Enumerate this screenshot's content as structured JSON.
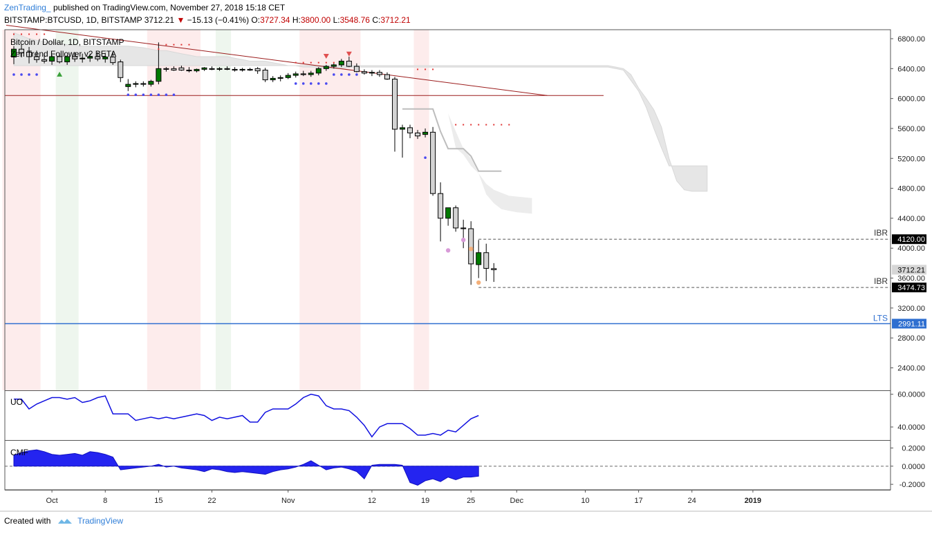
{
  "header": {
    "author": "ZenTrading_",
    "published": "published on TradingView.com, November 27, 2018 15:18 CET",
    "symbol": "BITSTAMP:BTCUSD, 1D, BITSTAMP",
    "last": "3712.21",
    "change_arrow": "▼",
    "change": "−15.13 (−0.41%)",
    "o_label": "O:",
    "o": "3727.34",
    "h_label": "H:",
    "h": "3800.00",
    "l_label": "L:",
    "l": "3548.76",
    "c_label": "C:",
    "c": "3712.21"
  },
  "legend": {
    "title": "Bitcoin / Dollar, 1D, BITSTAMP",
    "indicator": "Zen Trend Follower v2 BETA"
  },
  "footer": {
    "created": "Created with",
    "brand": "TradingView",
    "logo_icon": "tradingview-logo-icon"
  },
  "colors": {
    "up": "#007a00",
    "down": "#d3d3d3",
    "bg_red": "#fdecec",
    "bg_green": "#eef6ee",
    "trend": "#9b1b1b",
    "lts": "#2f6fd0",
    "cloud": "#e6e6e6",
    "osc": "#1010e0"
  },
  "chart_data": {
    "type": "candlestick",
    "y_ticks": [
      "6800.00",
      "6400.00",
      "6000.00",
      "5600.00",
      "5200.00",
      "4800.00",
      "4400.00",
      "4000.00",
      "3600.00",
      "3200.00",
      "2800.00",
      "2400.00"
    ],
    "ylim": [
      2100,
      6920
    ],
    "x_ticks": [
      {
        "label": "Oct",
        "i": 5
      },
      {
        "label": "8",
        "i": 12
      },
      {
        "label": "15",
        "i": 19
      },
      {
        "label": "22",
        "i": 26
      },
      {
        "label": "Nov",
        "i": 36
      },
      {
        "label": "12",
        "i": 47
      },
      {
        "label": "19",
        "i": 54
      },
      {
        "label": "25",
        "i": 60
      },
      {
        "label": "Dec",
        "i": 66
      },
      {
        "label": "10",
        "i": 75
      },
      {
        "label": "17",
        "i": 82
      },
      {
        "label": "24",
        "i": 89
      },
      {
        "label": "2019",
        "i": 97
      }
    ],
    "candles": [
      [
        6555,
        6700,
        6460,
        6660
      ],
      [
        6660,
        6720,
        6550,
        6610
      ],
      [
        6620,
        6690,
        6470,
        6560
      ],
      [
        6560,
        6640,
        6480,
        6520
      ],
      [
        6520,
        6600,
        6470,
        6500
      ],
      [
        6500,
        6580,
        6450,
        6560
      ],
      [
        6560,
        6600,
        6470,
        6490
      ],
      [
        6490,
        6580,
        6450,
        6560
      ],
      [
        6560,
        6620,
        6490,
        6530
      ],
      [
        6530,
        6600,
        6480,
        6540
      ],
      [
        6540,
        6600,
        6490,
        6560
      ],
      [
        6560,
        6620,
        6500,
        6530
      ],
      [
        6530,
        6610,
        6480,
        6555
      ],
      [
        6555,
        6630,
        6450,
        6480
      ],
      [
        6490,
        6520,
        6220,
        6280
      ],
      [
        6160,
        6260,
        6100,
        6190
      ],
      [
        6190,
        6230,
        6150,
        6200
      ],
      [
        6200,
        6230,
        6160,
        6190
      ],
      [
        6190,
        6250,
        6160,
        6230
      ],
      [
        6230,
        6750,
        6190,
        6400
      ],
      [
        6400,
        6420,
        6360,
        6390
      ],
      [
        6400,
        6430,
        6370,
        6380
      ],
      [
        6410,
        6440,
        6370,
        6380
      ],
      [
        6380,
        6420,
        6350,
        6370
      ],
      [
        6370,
        6400,
        6350,
        6390
      ],
      [
        6390,
        6420,
        6370,
        6410
      ],
      [
        6400,
        6430,
        6380,
        6390
      ],
      [
        6390,
        6420,
        6370,
        6400
      ],
      [
        6400,
        6430,
        6380,
        6390
      ],
      [
        6390,
        6420,
        6360,
        6380
      ],
      [
        6380,
        6410,
        6360,
        6390
      ],
      [
        6390,
        6410,
        6370,
        6380
      ],
      [
        6400,
        6420,
        6330,
        6370
      ],
      [
        6380,
        6410,
        6220,
        6250
      ],
      [
        6250,
        6300,
        6220,
        6270
      ],
      [
        6270,
        6310,
        6230,
        6280
      ],
      [
        6280,
        6340,
        6260,
        6310
      ],
      [
        6310,
        6360,
        6280,
        6330
      ],
      [
        6330,
        6370,
        6300,
        6320
      ],
      [
        6320,
        6370,
        6290,
        6340
      ],
      [
        6340,
        6420,
        6310,
        6400
      ],
      [
        6400,
        6450,
        6370,
        6430
      ],
      [
        6430,
        6470,
        6400,
        6450
      ],
      [
        6450,
        6530,
        6420,
        6500
      ],
      [
        6500,
        6560,
        6420,
        6430
      ],
      [
        6430,
        6470,
        6350,
        6360
      ],
      [
        6360,
        6390,
        6320,
        6340
      ],
      [
        6340,
        6380,
        6300,
        6350
      ],
      [
        6350,
        6380,
        6290,
        6320
      ],
      [
        6320,
        6350,
        6250,
        6260
      ],
      [
        6260,
        6290,
        5290,
        5590
      ],
      [
        5590,
        5650,
        5210,
        5610
      ],
      [
        5610,
        5650,
        5470,
        5540
      ],
      [
        5540,
        5580,
        5460,
        5500
      ],
      [
        5520,
        5600,
        5480,
        5550
      ],
      [
        5550,
        5620,
        4700,
        4730
      ],
      [
        4730,
        4880,
        4090,
        4400
      ],
      [
        4400,
        4520,
        4300,
        4540
      ],
      [
        4540,
        4570,
        4220,
        4270
      ],
      [
        4270,
        4380,
        4000,
        4260
      ],
      [
        4260,
        4360,
        3510,
        3790
      ],
      [
        3780,
        4110,
        3600,
        3940
      ],
      [
        3940,
        4060,
        3560,
        3730
      ],
      [
        3727,
        3800,
        3549,
        3712
      ]
    ],
    "ichimoku_span_top": [
      6880,
      6840,
      6800,
      6780,
      6760,
      6760,
      6740,
      6720,
      6710,
      6700,
      6700,
      6700,
      6700,
      6700,
      6700,
      6700,
      6690,
      6680,
      6660,
      6640,
      6640,
      6620,
      6600,
      6580,
      6560,
      6560,
      6560,
      6560,
      6560,
      6540,
      6520,
      6500,
      6500,
      6500,
      6480,
      6460,
      6440,
      6440,
      6420,
      6420,
      6420,
      6400,
      6400,
      6400,
      6420,
      6420,
      6420,
      6420,
      6420,
      6420,
      6420,
      6420,
      6420,
      6420,
      6420,
      6420,
      6420,
      6420,
      6420,
      6420,
      6420,
      6420,
      6420,
      6420,
      6420,
      6420,
      6420,
      6420,
      6420,
      6420,
      6420,
      6420,
      6420,
      6420,
      6420,
      6420,
      6420,
      6420,
      6420,
      6400,
      6380,
      6240,
      6100,
      5880,
      5600,
      5340,
      5100,
      5100,
      5100,
      5100,
      5100,
      5100
    ],
    "ichimoku_span_bottom": [
      6440,
      6440,
      6440,
      6440,
      6440,
      6440,
      6440,
      6440,
      6440,
      6440,
      6440,
      6440,
      6440,
      6440,
      6440,
      6440,
      6440,
      6440,
      6440,
      6440,
      6440,
      6440,
      6440,
      6440,
      6440,
      6440,
      6440,
      6440,
      6440,
      6440,
      6440,
      6440,
      6440,
      6440,
      6440,
      6440,
      6440,
      6440,
      6440,
      6440,
      6440,
      6440,
      6440,
      6440,
      6440,
      6440,
      6440,
      6440,
      6440,
      6440,
      6440,
      6440,
      6440,
      6440,
      6440,
      6440,
      6440,
      6440,
      6440,
      6440,
      6440,
      6440,
      6440,
      6440,
      6440,
      6440,
      6440,
      6440,
      6440,
      6440,
      6440,
      6440,
      6440,
      6440,
      6440,
      6440,
      6440,
      6440,
      6440,
      6420,
      6400,
      6320,
      6140,
      6000,
      5850,
      5620,
      5200,
      4900,
      4780,
      4760,
      4760,
      4760
    ],
    "future_cloud": {
      "start": 55,
      "top": [
        5860,
        5860,
        5800,
        5560,
        5330,
        5200,
        5000,
        4860,
        4780,
        4740,
        4700,
        4690,
        4680,
        4670
      ],
      "bottom": [
        5860,
        5860,
        5800,
        5340,
        5250,
        5100,
        5000,
        4720,
        4600,
        4520,
        4500,
        4480,
        4470,
        4460
      ]
    },
    "kijun_line": {
      "start": 51,
      "values": [
        5860,
        5860,
        5860,
        5860,
        5860,
        5560,
        5330,
        5330,
        5330,
        5230,
        5030,
        5030,
        5030,
        5030
      ]
    },
    "dots_red": [
      [
        0,
        6860
      ],
      [
        1,
        6860
      ],
      [
        2,
        6860
      ],
      [
        3,
        6860
      ],
      [
        4,
        6860
      ],
      [
        19,
        6660
      ],
      [
        20,
        6720
      ],
      [
        21,
        6720
      ],
      [
        22,
        6720
      ],
      [
        23,
        6720
      ],
      [
        37,
        6480
      ],
      [
        38,
        6480
      ],
      [
        39,
        6480
      ],
      [
        40,
        6480
      ],
      [
        41,
        6480
      ],
      [
        42,
        6480
      ],
      [
        53,
        6390
      ],
      [
        54,
        6390
      ],
      [
        55,
        6390
      ],
      [
        58,
        5650
      ],
      [
        59,
        5650
      ],
      [
        60,
        5650
      ],
      [
        61,
        5650
      ],
      [
        62,
        5650
      ],
      [
        63,
        5650
      ],
      [
        64,
        5650
      ],
      [
        65,
        5650
      ]
    ],
    "dots_blue": [
      [
        0,
        6320
      ],
      [
        1,
        6320
      ],
      [
        2,
        6320
      ],
      [
        3,
        6320
      ],
      [
        15,
        6050
      ],
      [
        16,
        6050
      ],
      [
        17,
        6050
      ],
      [
        18,
        6050
      ],
      [
        19,
        6050
      ],
      [
        20,
        6050
      ],
      [
        21,
        6050
      ],
      [
        37,
        6200
      ],
      [
        38,
        6200
      ],
      [
        39,
        6200
      ],
      [
        40,
        6200
      ],
      [
        41,
        6200
      ],
      [
        42,
        6320
      ],
      [
        43,
        6320
      ],
      [
        44,
        6320
      ],
      [
        45,
        6320
      ],
      [
        54,
        5210
      ]
    ],
    "dots_orange": [
      [
        60,
        3990
      ],
      [
        61,
        3540
      ]
    ],
    "dots_pink": [
      [
        57,
        3970
      ],
      [
        59,
        4110
      ]
    ],
    "arrows_up": [
      {
        "i": 6,
        "y": 6330
      }
    ],
    "arrows_down": [
      {
        "i": 41,
        "y": 6560
      },
      {
        "i": 44,
        "y": 6590
      }
    ],
    "red_bands": [
      [
        -1,
        3
      ],
      [
        18,
        24
      ],
      [
        38,
        45
      ],
      [
        53,
        54
      ]
    ],
    "green_bands": [
      [
        6,
        8
      ],
      [
        27,
        28
      ]
    ],
    "trendline": {
      "from": [
        -1,
        6980
      ],
      "to": [
        70,
        6040
      ]
    },
    "hline_6040": 6040,
    "ibr_high": {
      "value": 4120.0,
      "label": "IBR",
      "tag": "4120.00",
      "from": 61
    },
    "ibr_low": {
      "value": 3474.73,
      "label": "IBR",
      "tag": "3474.73",
      "from": 61
    },
    "lts": {
      "value": 2991.11,
      "label": "LTS",
      "tag": "2991.11"
    },
    "last_tag": "3712.21",
    "uo": {
      "label": "UO",
      "ticks": [
        "60.0000",
        "40.0000"
      ],
      "ylim": [
        32,
        62
      ],
      "values": [
        57,
        57,
        51,
        54,
        56,
        58,
        58,
        57,
        58,
        55,
        56,
        58,
        59,
        48,
        48,
        48,
        44,
        45,
        46,
        45,
        46,
        45,
        46,
        47,
        48,
        47,
        44,
        46,
        45,
        46,
        47,
        43,
        43,
        49,
        51,
        51,
        51,
        54,
        58,
        60,
        59,
        53,
        51,
        51,
        50,
        46,
        41,
        34,
        40,
        42,
        42,
        42,
        39,
        35,
        35,
        36,
        35,
        38,
        37,
        41,
        45,
        47
      ]
    },
    "cmf": {
      "label": "CMF",
      "ticks": [
        "0.2000",
        "0.0000",
        "-0.2000"
      ],
      "ylim": [
        -0.26,
        0.28
      ],
      "values": [
        0.12,
        0.15,
        0.17,
        0.18,
        0.16,
        0.13,
        0.12,
        0.13,
        0.14,
        0.12,
        0.16,
        0.15,
        0.13,
        0.1,
        -0.04,
        -0.03,
        -0.02,
        -0.01,
        0.0,
        0.02,
        -0.01,
        0.0,
        -0.02,
        -0.03,
        -0.04,
        -0.06,
        -0.03,
        -0.04,
        -0.06,
        -0.07,
        -0.06,
        -0.07,
        -0.08,
        -0.09,
        -0.06,
        -0.04,
        -0.03,
        -0.01,
        0.02,
        0.06,
        0.01,
        -0.04,
        -0.02,
        -0.01,
        -0.03,
        -0.06,
        -0.14,
        0.01,
        0.02,
        0.02,
        0.02,
        0.01,
        -0.18,
        -0.21,
        -0.16,
        -0.14,
        -0.17,
        -0.12,
        -0.15,
        -0.12,
        -0.12,
        -0.11
      ]
    }
  }
}
